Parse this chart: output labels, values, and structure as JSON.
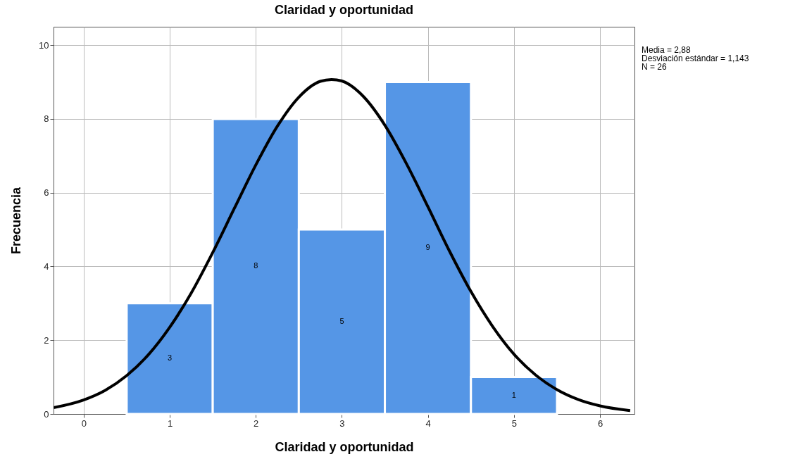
{
  "chart_data": {
    "type": "histogram",
    "title": "Claridad y oportunidad",
    "xlabel": "Claridad y oportunidad",
    "ylabel": "Frecuencia",
    "bins": [
      0.5,
      1.5,
      2.5,
      3.5,
      4.5,
      5.5
    ],
    "values": [
      3,
      8,
      5,
      9,
      1
    ],
    "color": "#5596e6",
    "value_labels": [
      "3",
      "8",
      "5",
      "9",
      "1"
    ],
    "series": [
      {
        "type": "line",
        "color": "#000000",
        "x": [
          -0.35,
          0,
          0.25,
          0.5,
          0.75,
          1,
          1.25,
          1.5,
          1.75,
          2,
          2.25,
          2.5,
          2.75,
          2.88,
          3,
          3.25,
          3.5,
          3.75,
          4,
          4.25,
          4.5,
          4.75,
          5,
          5.25,
          5.5,
          5.75,
          6,
          6.35
        ],
        "values": [
          0.17,
          0.38,
          0.64,
          1.04,
          1.6,
          2.35,
          3.28,
          4.38,
          5.57,
          6.75,
          7.8,
          8.59,
          9.02,
          9.07,
          9.03,
          8.61,
          7.83,
          6.79,
          5.62,
          4.42,
          3.32,
          2.38,
          1.62,
          1.06,
          0.66,
          0.39,
          0.22,
          0.09
        ]
      }
    ],
    "xlim": [
      -0.35,
      6.4
    ],
    "xticks": [
      0,
      1,
      2,
      3,
      4,
      5,
      6
    ],
    "ylim": [
      0,
      10.5
    ],
    "yticks": [
      0,
      2,
      4,
      6,
      8,
      10
    ],
    "grid": true,
    "annotations": [
      "Media = 2,88",
      "Desviación estándar = 1,143",
      "N = 26"
    ]
  }
}
